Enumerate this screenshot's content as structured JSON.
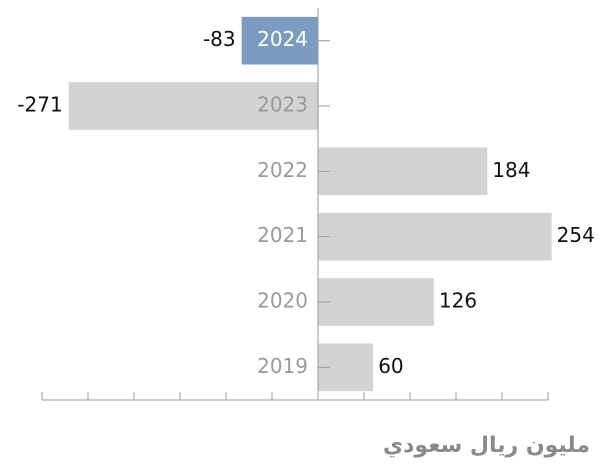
{
  "chart_data": {
    "type": "barh",
    "categories": [
      "2024",
      "2023",
      "2022",
      "2021",
      "2020",
      "2019"
    ],
    "values": [
      -83,
      -271,
      184,
      254,
      126,
      60
    ],
    "color": "#d3d3d3",
    "highlight": {
      "index": 0,
      "color": "#7b9bc1"
    },
    "xlabel": "مليون ريال سعودي",
    "xlim": [
      -300,
      250
    ],
    "xticks": [
      -300,
      -250,
      -200,
      -150,
      -100,
      -50,
      0,
      50,
      100,
      150,
      200,
      250
    ]
  }
}
